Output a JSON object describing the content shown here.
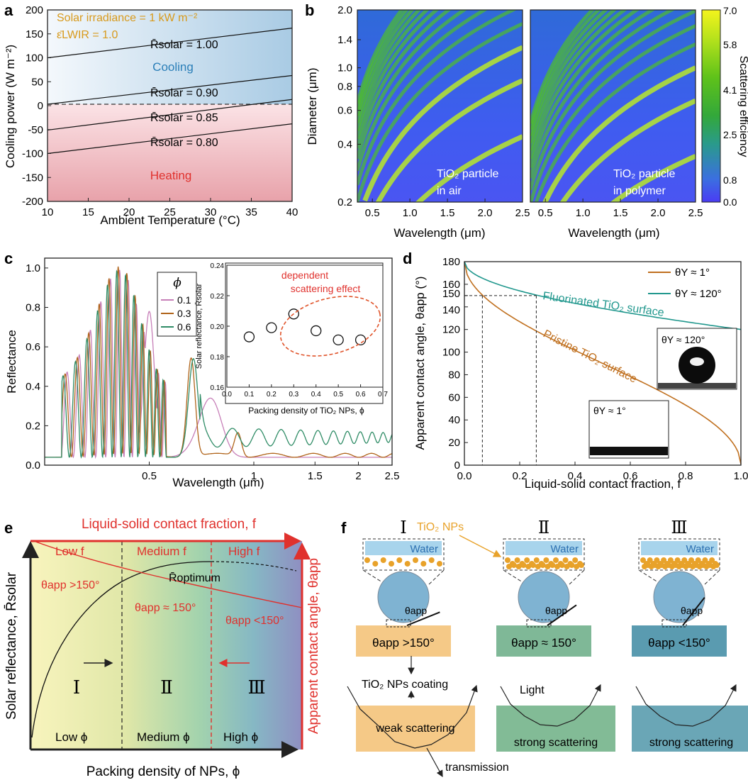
{
  "panels": {
    "a": "a",
    "b": "b",
    "c": "c",
    "d": "d",
    "e": "e",
    "f": "f"
  },
  "chart_data": [
    {
      "id": "a",
      "type": "line",
      "xlabel": "Ambient Temperature (°C)",
      "ylabel": "Cooling power (W m⁻²)",
      "xlim": [
        10,
        40
      ],
      "ylim": [
        -200,
        200
      ],
      "xticks": [
        "10",
        "15",
        "20",
        "25",
        "30",
        "35",
        "40"
      ],
      "yticks": [
        "-200",
        "-150",
        "-100",
        "-50",
        "0",
        "50",
        "100",
        "150",
        "200"
      ],
      "annotation_1": "Solar irradiance = 1 kW m⁻²",
      "annotation_2": "ε̄LWIR = 1.0",
      "region_top": "Cooling",
      "region_bottom": "Heating",
      "series": [
        {
          "name": "R̄solar = 1.00",
          "x": [
            10,
            40
          ],
          "y": [
            100,
            162
          ]
        },
        {
          "name": "R̄solar = 0.90",
          "x": [
            10,
            40
          ],
          "y": [
            3,
            63
          ]
        },
        {
          "name": "R̄solar = 0.85",
          "x": [
            10,
            40
          ],
          "y": [
            -51,
            13
          ]
        },
        {
          "name": "R̄solar = 0.80",
          "x": [
            10,
            40
          ],
          "y": [
            -100,
            -38
          ]
        }
      ]
    },
    {
      "id": "b",
      "type": "heatmap",
      "xlabel": "Wavelength (μm)",
      "ylabel": "Diameter (μm)",
      "xticks": [
        "0.5",
        "1.0",
        "1.5",
        "2.0",
        "2.5"
      ],
      "yticks": [
        "0.2",
        "0.4",
        "0.6",
        "0.8",
        "1.0",
        "1.4",
        "2.0"
      ],
      "colorbar_label": "Scattering efficiency",
      "colorbar_ticks": [
        "7.0",
        "5.8",
        "4.1",
        "2.5",
        "0.8",
        "0.0"
      ],
      "maps": [
        {
          "label_1": "TiO₂ particle",
          "label_2": "in air"
        },
        {
          "label_1": "TiO₂ particle",
          "label_2": "in polymer"
        }
      ]
    },
    {
      "id": "c",
      "type": "line",
      "xlabel": "Wavelength (μm)",
      "ylabel": "Reflectance",
      "xlim": [
        0.25,
        2.5
      ],
      "ylim": [
        0,
        1.05
      ],
      "xticks": [
        "0.5",
        "1",
        "1.5",
        "2",
        "2.5"
      ],
      "yticks": [
        "0.0",
        "0.2",
        "0.4",
        "0.6",
        "0.8",
        "1.0"
      ],
      "legend_title": "ϕ",
      "series": [
        {
          "name": "0.1",
          "color": "#c77fb8"
        },
        {
          "name": "0.3",
          "color": "#b0641a"
        },
        {
          "name": "0.6",
          "color": "#2f8c66"
        }
      ],
      "inset": {
        "type": "scatter",
        "xlabel": "Packing density of TiO₂ NPs, ϕ",
        "ylabel": "Solar reflectance, R̄solar",
        "xticks": [
          "0.0",
          "0.1",
          "0.2",
          "0.3",
          "0.4",
          "0.5",
          "0.6",
          "0.7"
        ],
        "yticks": [
          "0.16",
          "0.18",
          "0.20",
          "0.22",
          "0.24"
        ],
        "x": [
          0.1,
          0.2,
          0.3,
          0.4,
          0.5,
          0.6
        ],
        "y": [
          0.193,
          0.199,
          0.208,
          0.197,
          0.191,
          0.191
        ],
        "annotation_1": "dependent",
        "annotation_2": "scattering effect"
      }
    },
    {
      "id": "d",
      "type": "line",
      "xlabel": "Liquid-solid contact fraction, f",
      "ylabel": "Apparent contact angle, θapp (°)",
      "xlim": [
        0,
        1
      ],
      "ylim": [
        0,
        180
      ],
      "xticks": [
        "0.0",
        "0.2",
        "0.4",
        "0.6",
        "0.8",
        "1.0"
      ],
      "yticks": [
        "0",
        "20",
        "40",
        "60",
        "80",
        "100",
        "120",
        "140",
        "150",
        "160",
        "180"
      ],
      "series": [
        {
          "name": "θY ≈ 1°",
          "label": "Pristine TiO₂ surface",
          "color": "#c0701f"
        },
        {
          "name": "θY ≈ 120°",
          "label": "Fluorinated TiO₂ surface",
          "color": "#22988e"
        }
      ],
      "inset_1": "θY ≈ 120°",
      "inset_2": "θY ≈ 1°"
    }
  ],
  "panel_e": {
    "top_axis": "Liquid-solid contact fraction, f",
    "bottom_axis": "Packing density of NPs, ϕ",
    "left_axis": "Solar reflectance, R̄solar",
    "right_axis": "Apparent contact angle, θapp",
    "low_f": "Low f",
    "medium_f": "Medium f",
    "high_f": "High f",
    "r_optimum": "R̄optimum",
    "theta_1": "θapp >150°",
    "theta_2": "θapp ≈ 150°",
    "theta_3": "θapp <150°",
    "region_1": "Ⅰ",
    "region_2": "Ⅱ",
    "region_3": "Ⅲ",
    "low_phi": "Low ϕ",
    "medium_phi": "Medium ϕ",
    "high_phi": "High ϕ"
  },
  "panel_f": {
    "cols": [
      {
        "roman": "Ⅰ",
        "water": "Water",
        "theta": "θapp",
        "state": "θapp >150°",
        "scatter": "weak scattering"
      },
      {
        "roman": "Ⅱ",
        "water": "Water",
        "theta": "θapp",
        "state": "θapp ≈ 150°",
        "scatter": "strong scattering"
      },
      {
        "roman": "Ⅲ",
        "water": "Water",
        "theta": "θapp",
        "state": "θapp <150°",
        "scatter": "strong scattering"
      }
    ],
    "nps_label": "TiO₂ NPs",
    "coating": "TiO₂ NPs coating",
    "light": "Light",
    "transmission": "transmission"
  }
}
